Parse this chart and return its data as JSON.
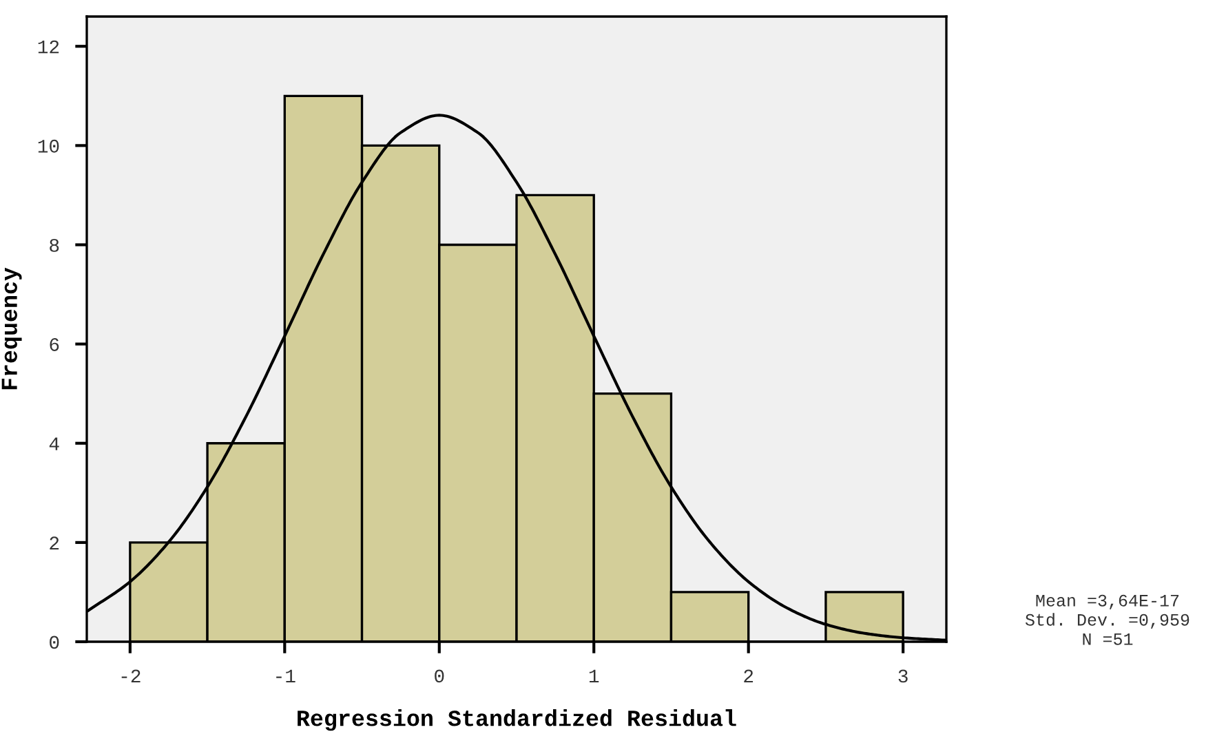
{
  "chart_data": {
    "type": "histogram",
    "xlabel": "Regression Standardized Residual",
    "ylabel": "Frequency",
    "bins": [
      -2,
      -1.5,
      -1,
      -0.5,
      0,
      0.5,
      1,
      1.5,
      2,
      2.5,
      3
    ],
    "values": [
      2,
      4,
      11,
      10,
      8,
      9,
      5,
      1,
      0,
      1
    ],
    "color": "#d3ce99",
    "series": [
      {
        "type": "line",
        "color": "#000000",
        "x": [
          -2.27,
          -2,
          -1.75,
          -1.5,
          -1.25,
          -1,
          -0.75,
          -0.5,
          -0.25,
          0,
          0.25,
          0.5,
          0.75,
          1,
          1.25,
          1.5,
          1.75,
          2,
          2.25,
          2.5,
          2.75,
          3,
          3.28
        ],
        "values": [
          0.63,
          1.21,
          2.01,
          3.12,
          4.54,
          6.16,
          7.81,
          9.26,
          10.26,
          10.61,
          10.26,
          9.26,
          7.81,
          6.16,
          4.54,
          3.12,
          2.01,
          1.21,
          0.68,
          0.35,
          0.17,
          0.08,
          0.03
        ]
      }
    ],
    "xlim": [
      -2.28,
      3.28
    ],
    "xticks": [
      -2,
      -1,
      0,
      1,
      2,
      3
    ],
    "ylim": [
      0,
      12.6
    ],
    "yticks": [
      0,
      2,
      4,
      6,
      8,
      10,
      12
    ],
    "grid": false,
    "legend": false,
    "annotations": [
      "Mean =3,64E-17",
      "Std. Dev. =0,959",
      "N =51"
    ]
  }
}
